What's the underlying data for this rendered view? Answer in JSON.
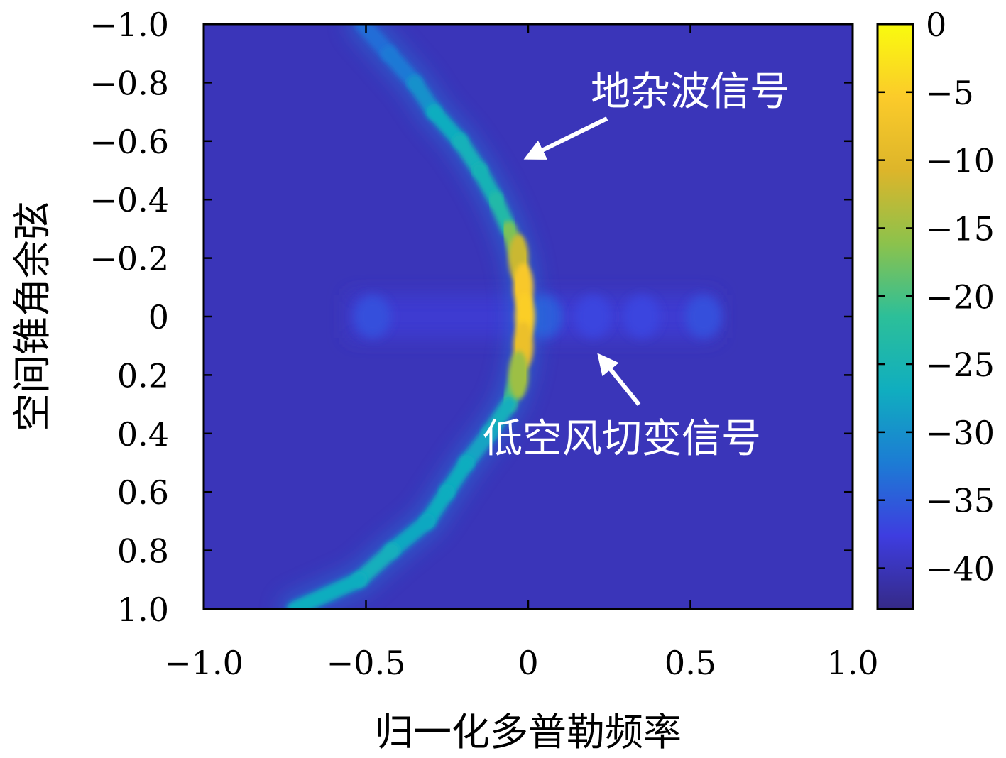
{
  "chart_data": {
    "type": "heatmap",
    "title": "",
    "xlabel": "归一化多普勒频率",
    "ylabel": "空间锥角余弦",
    "xlim": [
      -1.0,
      1.0
    ],
    "ylim": [
      -1.0,
      1.0
    ],
    "y_axis_direction": "downward-increasing",
    "xticks": [
      -1.0,
      -0.5,
      0,
      0.5,
      1.0
    ],
    "xtick_labels": [
      "−1.0",
      "−0.5",
      "0",
      "0.5",
      "1.0"
    ],
    "yticks": [
      -1.0,
      -0.8,
      -0.6,
      -0.4,
      -0.2,
      0,
      0.2,
      0.4,
      0.6,
      0.8,
      1.0
    ],
    "ytick_labels": [
      "−1.0",
      "−0.8",
      "−0.6",
      "−0.4",
      "−0.2",
      "0",
      "0.2",
      "0.4",
      "0.6",
      "0.8",
      "1.0"
    ],
    "grid": false,
    "colormap": "parula",
    "background_value_dB": -40,
    "colorbar": {
      "range": [
        -43,
        0
      ],
      "ticks": [
        0,
        -5,
        -10,
        -15,
        -20,
        -25,
        -30,
        -35,
        -40
      ],
      "tick_labels": [
        "0",
        "−5",
        "−10",
        "−15",
        "−20",
        "−25",
        "−30",
        "−35",
        "−40"
      ],
      "colors": [
        "#352a87",
        "#3e3de0",
        "#1c7cd4",
        "#10aebf",
        "#2cbf99",
        "#8cc24c",
        "#ddb52a",
        "#fbcb2a",
        "#f9fb0e"
      ]
    },
    "clutter_ridge": {
      "name": "地杂波信号",
      "points": [
        {
          "y": -1.0,
          "x": -0.51,
          "db": -34
        },
        {
          "y": -0.9,
          "x": -0.43,
          "db": -33
        },
        {
          "y": -0.8,
          "x": -0.35,
          "db": -32
        },
        {
          "y": -0.7,
          "x": -0.29,
          "db": -28
        },
        {
          "y": -0.6,
          "x": -0.21,
          "db": -26
        },
        {
          "y": -0.5,
          "x": -0.15,
          "db": -26
        },
        {
          "y": -0.4,
          "x": -0.1,
          "db": -25
        },
        {
          "y": -0.3,
          "x": -0.06,
          "db": -22
        },
        {
          "y": -0.2,
          "x": -0.03,
          "db": -12
        },
        {
          "y": -0.1,
          "x": -0.015,
          "db": -6
        },
        {
          "y": 0.0,
          "x": -0.01,
          "db": -5
        },
        {
          "y": 0.1,
          "x": -0.015,
          "db": -8
        },
        {
          "y": 0.2,
          "x": -0.03,
          "db": -15
        },
        {
          "y": 0.3,
          "x": -0.06,
          "db": -25
        },
        {
          "y": 0.4,
          "x": -0.12,
          "db": -28
        },
        {
          "y": 0.5,
          "x": -0.19,
          "db": -28
        },
        {
          "y": 0.6,
          "x": -0.25,
          "db": -26
        },
        {
          "y": 0.7,
          "x": -0.31,
          "db": -28
        },
        {
          "y": 0.8,
          "x": -0.42,
          "db": -27
        },
        {
          "y": 0.9,
          "x": -0.52,
          "db": -26
        },
        {
          "y": 1.0,
          "x": -0.72,
          "db": -28
        }
      ]
    },
    "windshear_band": {
      "name": "低空风切变信号",
      "y": 0.0,
      "x_range": [
        -0.55,
        0.58
      ],
      "blobs": [
        {
          "x": -0.48,
          "db": -36
        },
        {
          "x": 0.05,
          "db": -35
        },
        {
          "x": 0.2,
          "db": -37
        },
        {
          "x": 0.35,
          "db": -37
        },
        {
          "x": 0.54,
          "db": -36
        }
      ]
    },
    "annotations": [
      {
        "text": "地杂波信号",
        "arrow_to": {
          "x": -0.01,
          "y": -0.55
        }
      },
      {
        "text": "低空风切变信号",
        "arrow_to": {
          "x": 0.22,
          "y": 0.14
        }
      }
    ]
  }
}
